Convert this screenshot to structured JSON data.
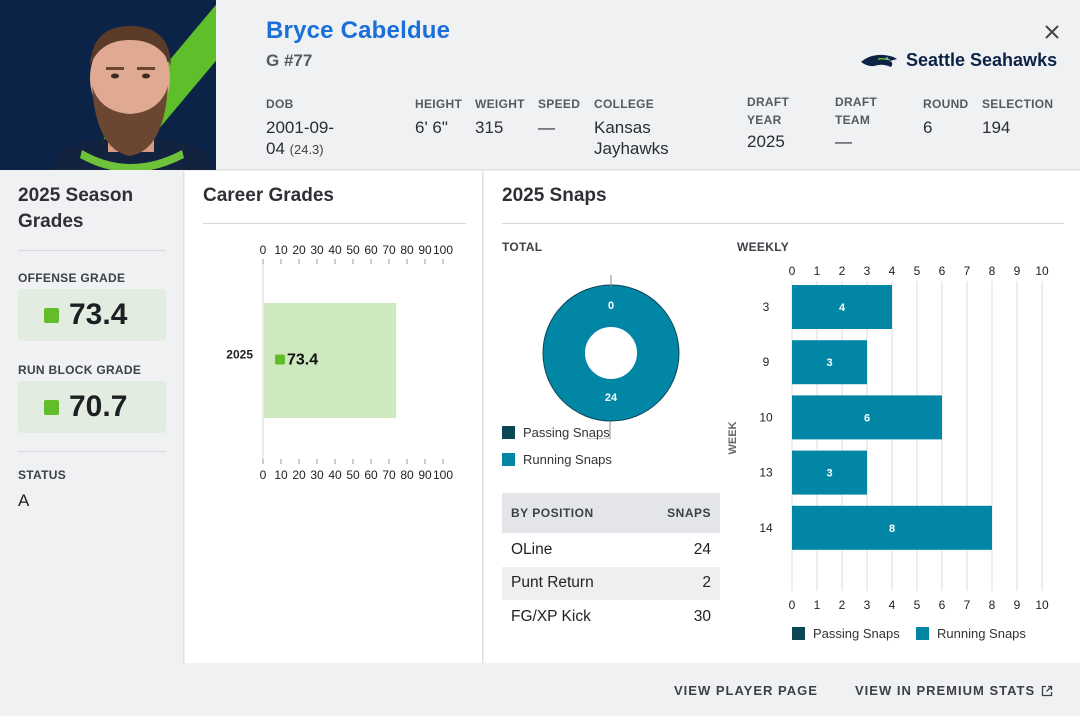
{
  "header": {
    "player_name": "Bryce Cabeldue",
    "position_number": "G #77",
    "team_name": "Seattle Seahawks",
    "close_icon": "close-icon",
    "meta": [
      {
        "label": "DOB",
        "value": "2001-09-",
        "value2": "04",
        "sub": "(24.3)"
      },
      {
        "label": "HEIGHT",
        "value": "6' 6\""
      },
      {
        "label": "WEIGHT",
        "value": "315"
      },
      {
        "label": "SPEED",
        "value": "—"
      },
      {
        "label": "COLLEGE",
        "value": "Kansas",
        "value2": "Jayhawks"
      },
      {
        "label": "DRAFT",
        "label2": "YEAR",
        "value": "2025"
      },
      {
        "label": "DRAFT",
        "label2": "TEAM",
        "value": "—"
      },
      {
        "label": "ROUND",
        "value": "6"
      },
      {
        "label": "SELECTION",
        "value": "194"
      }
    ]
  },
  "season": {
    "title_line1": "2025 Season",
    "title_line2": "Grades",
    "offense_label": "OFFENSE GRADE",
    "offense_value": "73.4",
    "run_block_label": "RUN BLOCK GRADE",
    "run_block_value": "70.7",
    "status_label": "STATUS",
    "status_value": "A"
  },
  "career": {
    "title": "Career Grades"
  },
  "snaps": {
    "title": "2025 Snaps",
    "total_label": "TOTAL",
    "weekly_label": "WEEKLY",
    "table": {
      "col_position": "BY POSITION",
      "col_snaps": "SNAPS",
      "rows": [
        {
          "position": "OLine",
          "snaps": "24"
        },
        {
          "position": "Punt Return",
          "snaps": "2"
        },
        {
          "position": "FG/XP Kick",
          "snaps": "30"
        }
      ]
    },
    "legend_passing": "Passing Snaps",
    "legend_running": "Running Snaps"
  },
  "colors": {
    "passing": "#0b4654",
    "running": "#0286a5",
    "grade_green": "#62bd2a",
    "career_bar": "#cfe9bf",
    "name_blue": "#1a6fd8"
  },
  "footer": {
    "view_player": "VIEW PLAYER PAGE",
    "view_premium": "VIEW IN PREMIUM STATS",
    "external_icon": "external-link-icon"
  },
  "chart_data": [
    {
      "type": "bar",
      "title": "Career Grades",
      "orientation": "horizontal",
      "categories": [
        "2025"
      ],
      "values": [
        73.4
      ],
      "data_labels": [
        "73.4"
      ],
      "xlim": [
        0,
        100
      ],
      "x_ticks": [
        "0",
        "10",
        "20",
        "30",
        "40",
        "50",
        "60",
        "70",
        "80",
        "90",
        "100"
      ]
    },
    {
      "type": "pie",
      "style": "donut",
      "title": "TOTAL",
      "series": [
        {
          "name": "Passing Snaps",
          "value": 0,
          "label": "0"
        },
        {
          "name": "Running Snaps",
          "value": 24,
          "label": "24"
        }
      ]
    },
    {
      "type": "bar",
      "title": "WEEKLY",
      "orientation": "horizontal",
      "stacked": true,
      "ylabel": "WEEK",
      "categories": [
        "3",
        "9",
        "10",
        "13",
        "14"
      ],
      "series": [
        {
          "name": "Passing Snaps",
          "values": [
            0,
            0,
            0,
            0,
            0
          ]
        },
        {
          "name": "Running Snaps",
          "values": [
            4,
            3,
            6,
            3,
            8
          ]
        }
      ],
      "data_labels": [
        "4",
        "3",
        "6",
        "3",
        "8"
      ],
      "xlim": [
        0,
        10
      ],
      "x_ticks": [
        "0",
        "1",
        "2",
        "3",
        "4",
        "5",
        "6",
        "7",
        "8",
        "9",
        "10"
      ],
      "grid": true,
      "legend": "bottom"
    }
  ]
}
